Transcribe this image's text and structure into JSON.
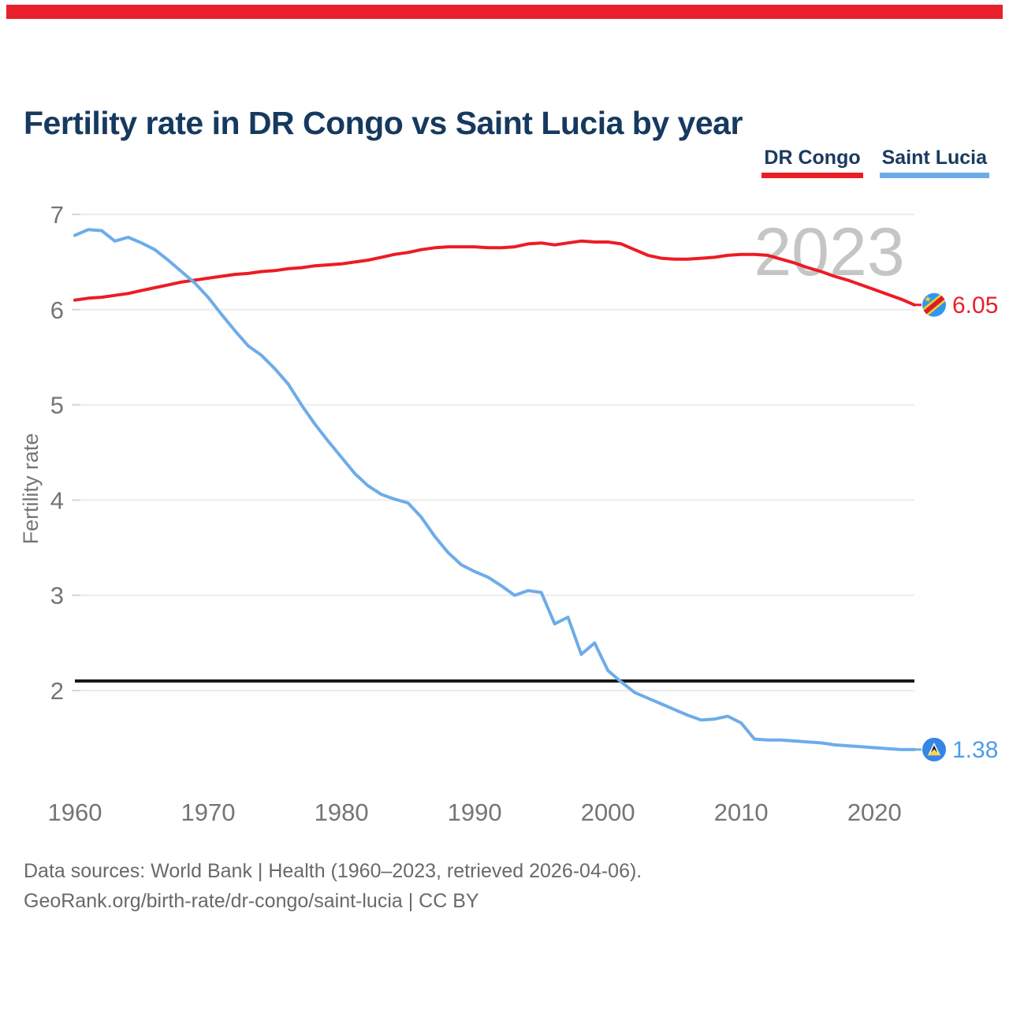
{
  "brand": {
    "bar_color": "#e8202b"
  },
  "header": {
    "title": "Fertility rate in DR Congo vs Saint Lucia by year"
  },
  "legend": [
    {
      "label": "DR Congo",
      "color": "#ec1c24"
    },
    {
      "label": "Saint Lucia",
      "color": "#6cabe8"
    }
  ],
  "footer": {
    "line1": "Data sources: World Bank | Health (1960–2023, retrieved 2026-04-06).",
    "line2": "GeoRank.org/birth-rate/dr-congo/saint-lucia | CC BY"
  },
  "chart_data": {
    "type": "line",
    "title": "Fertility rate in DR Congo vs Saint Lucia by year",
    "xlabel": "",
    "ylabel": "Fertility rate",
    "watermark": "2023",
    "x_start": 1960,
    "x_end": 2023,
    "x_ticks": [
      1960,
      1970,
      1980,
      1990,
      2000,
      2010,
      2020
    ],
    "y_ticks": [
      2,
      3,
      4,
      5,
      6,
      7
    ],
    "ylim": [
      1.3,
      7
    ],
    "grid": "horizontal",
    "legend_position": "top-right",
    "reference_line_y": 2.1,
    "axis_text_color": "#757575",
    "grid_color": "#ececec",
    "watermark_color": "#c5c5c5",
    "series": [
      {
        "name": "DR Congo",
        "color": "#ec1c24",
        "label_color": "#e8202b",
        "end_label": "6.05",
        "flag": "dr-congo",
        "values": [
          6.1,
          6.12,
          6.13,
          6.15,
          6.17,
          6.2,
          6.23,
          6.26,
          6.29,
          6.31,
          6.33,
          6.35,
          6.37,
          6.38,
          6.4,
          6.41,
          6.43,
          6.44,
          6.46,
          6.47,
          6.48,
          6.5,
          6.52,
          6.55,
          6.58,
          6.6,
          6.63,
          6.65,
          6.66,
          6.66,
          6.66,
          6.65,
          6.65,
          6.66,
          6.69,
          6.7,
          6.68,
          6.7,
          6.72,
          6.71,
          6.71,
          6.69,
          6.63,
          6.57,
          6.54,
          6.53,
          6.53,
          6.54,
          6.55,
          6.57,
          6.58,
          6.58,
          6.57,
          6.53,
          6.49,
          6.44,
          6.4,
          6.35,
          6.31,
          6.26,
          6.21,
          6.16,
          6.11,
          6.05
        ]
      },
      {
        "name": "Saint Lucia",
        "color": "#6dacea",
        "label_color": "#4f9ce8",
        "end_label": "1.38",
        "flag": "saint-lucia",
        "values": [
          6.78,
          6.84,
          6.83,
          6.72,
          6.76,
          6.7,
          6.63,
          6.52,
          6.4,
          6.28,
          6.13,
          5.95,
          5.78,
          5.62,
          5.52,
          5.38,
          5.22,
          5.0,
          4.8,
          4.62,
          4.45,
          4.28,
          4.15,
          4.06,
          4.01,
          3.97,
          3.82,
          3.62,
          3.45,
          3.32,
          3.25,
          3.19,
          3.1,
          3.0,
          3.05,
          3.03,
          2.7,
          2.77,
          2.38,
          2.5,
          2.21,
          2.09,
          1.98,
          1.92,
          1.86,
          1.8,
          1.74,
          1.69,
          1.7,
          1.73,
          1.66,
          1.49,
          1.48,
          1.48,
          1.47,
          1.46,
          1.45,
          1.43,
          1.42,
          1.41,
          1.4,
          1.39,
          1.38,
          1.38
        ]
      }
    ]
  }
}
